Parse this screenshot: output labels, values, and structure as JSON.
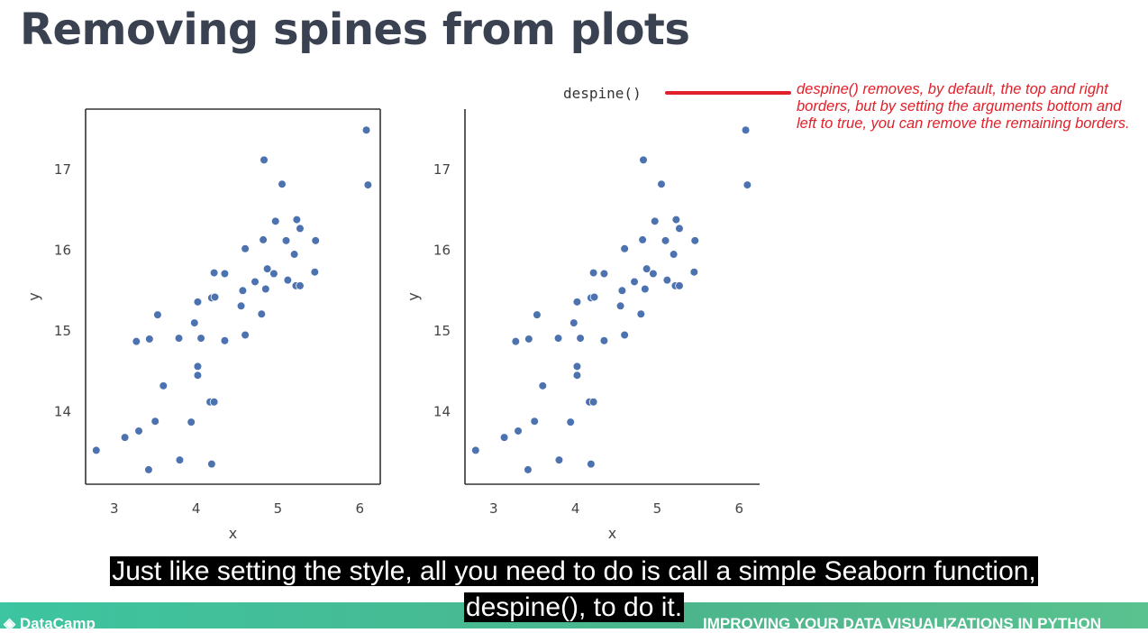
{
  "slide": {
    "title": "Removing spines from plots",
    "code_label": "despine()",
    "note": "despine() removes, by default, the top and right borders, but by setting the arguments bottom and left to true, you can remove the remaining borders.",
    "note_color": "#e0202a",
    "accent_color": "#3cc5a0"
  },
  "caption": {
    "line1": "Just like setting the style, all you need to do is call a simple Seaborn function,",
    "line2": "despine(), to do it."
  },
  "footer": {
    "brand": "DataCamp",
    "course": "IMPROVING YOUR DATA VISUALIZATIONS IN PYTHON"
  },
  "chart_data": [
    {
      "type": "scatter",
      "title": "",
      "xlabel": "x",
      "ylabel": "y",
      "xlim": [
        2.65,
        6.25
      ],
      "ylim": [
        13.1,
        17.75
      ],
      "xticks": [
        "3",
        "4",
        "5",
        "6"
      ],
      "yticks": [
        "14",
        "15",
        "16",
        "17"
      ],
      "spines": [
        "top",
        "right",
        "bottom",
        "left"
      ],
      "grid": false,
      "point_color": "#4c72b0",
      "x": [
        2.78,
        3.13,
        3.3,
        3.42,
        3.5,
        3.27,
        3.43,
        3.53,
        3.6,
        3.79,
        3.94,
        3.98,
        4.02,
        4.02,
        4.06,
        4.02,
        3.8,
        4.19,
        4.23,
        4.17,
        4.22,
        4.19,
        4.35,
        4.35,
        4.22,
        4.55,
        4.57,
        4.6,
        4.6,
        4.72,
        4.8,
        4.85,
        4.82,
        4.83,
        4.87,
        4.95,
        4.97,
        5.05,
        5.1,
        5.12,
        5.2,
        5.27,
        5.23,
        5.22,
        5.27,
        5.45,
        5.46,
        6.08,
        6.1
      ],
      "y": [
        13.52,
        13.68,
        13.76,
        13.28,
        13.88,
        14.87,
        14.9,
        15.2,
        14.32,
        14.91,
        13.87,
        15.1,
        14.45,
        14.56,
        14.91,
        15.36,
        13.4,
        15.41,
        15.42,
        14.12,
        14.12,
        13.35,
        14.88,
        15.71,
        15.72,
        15.31,
        15.5,
        14.95,
        16.02,
        15.61,
        15.21,
        15.52,
        16.13,
        17.12,
        15.77,
        15.71,
        16.36,
        16.82,
        16.12,
        15.63,
        15.95,
        16.27,
        16.38,
        15.56,
        15.56,
        15.73,
        16.12,
        17.49,
        16.81
      ]
    },
    {
      "type": "scatter",
      "title": "",
      "xlabel": "x",
      "ylabel": "y",
      "xlim": [
        2.65,
        6.25
      ],
      "ylim": [
        13.1,
        17.75
      ],
      "xticks": [
        "3",
        "4",
        "5",
        "6"
      ],
      "yticks": [
        "14",
        "15",
        "16",
        "17"
      ],
      "spines": [
        "bottom",
        "left"
      ],
      "grid": false,
      "point_color": "#4c72b0",
      "x": [
        2.78,
        3.13,
        3.3,
        3.42,
        3.5,
        3.27,
        3.43,
        3.53,
        3.6,
        3.79,
        3.94,
        3.98,
        4.02,
        4.02,
        4.06,
        4.02,
        3.8,
        4.19,
        4.23,
        4.17,
        4.22,
        4.19,
        4.35,
        4.35,
        4.22,
        4.55,
        4.57,
        4.6,
        4.6,
        4.72,
        4.8,
        4.85,
        4.82,
        4.83,
        4.87,
        4.95,
        4.97,
        5.05,
        5.1,
        5.12,
        5.2,
        5.27,
        5.23,
        5.22,
        5.27,
        5.45,
        5.46,
        6.08,
        6.1
      ],
      "y": [
        13.52,
        13.68,
        13.76,
        13.28,
        13.88,
        14.87,
        14.9,
        15.2,
        14.32,
        14.91,
        13.87,
        15.1,
        14.45,
        14.56,
        14.91,
        15.36,
        13.4,
        15.41,
        15.42,
        14.12,
        14.12,
        13.35,
        14.88,
        15.71,
        15.72,
        15.31,
        15.5,
        14.95,
        16.02,
        15.61,
        15.21,
        15.52,
        16.13,
        17.12,
        15.77,
        15.71,
        16.36,
        16.82,
        16.12,
        15.63,
        15.95,
        16.27,
        16.38,
        15.56,
        15.56,
        15.73,
        16.12,
        17.49,
        16.81
      ]
    }
  ]
}
